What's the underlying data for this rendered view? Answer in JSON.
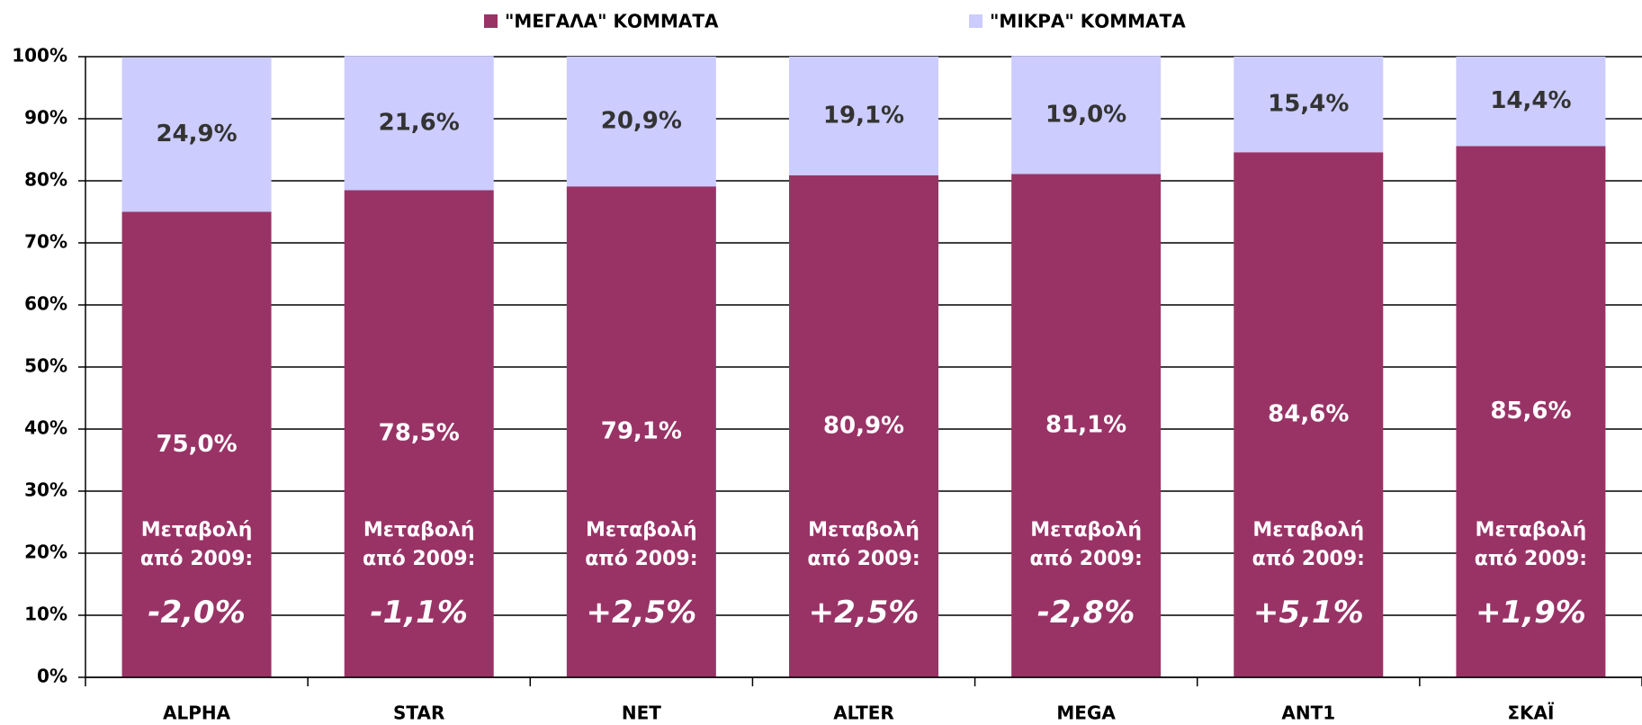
{
  "chart_data": {
    "type": "stacked_bar",
    "categories": [
      "ALPHA",
      "STAR",
      "NET",
      "ALTER",
      "MEGA",
      "ANT1",
      "ΣΚΑΪ"
    ],
    "series": [
      {
        "name": "\"ΜΕΓΑΛΑ\" ΚΟΜΜΑΤΑ",
        "color": "#993366",
        "values": [
          75.0,
          78.5,
          79.1,
          80.9,
          81.1,
          84.6,
          85.6
        ],
        "value_labels": [
          "75,0%",
          "78,5%",
          "79,1%",
          "80,9%",
          "81,1%",
          "84,6%",
          "85,6%"
        ]
      },
      {
        "name": "\"ΜΙΚΡΑ\" ΚΟΜΜΑΤΑ",
        "color": "#ccccff",
        "values": [
          24.9,
          21.6,
          20.9,
          19.1,
          19.0,
          15.4,
          14.4
        ],
        "value_labels": [
          "24,9%",
          "21,6%",
          "20,9%",
          "19,1%",
          "19,0%",
          "15,4%",
          "14,4%"
        ]
      }
    ],
    "annotation_lines": [
      "Μεταβολή",
      "από 2009:"
    ],
    "changes": [
      -2.0,
      -1.1,
      2.5,
      2.5,
      -2.8,
      5.1,
      1.9
    ],
    "change_labels": [
      "-2,0%",
      "-1,1%",
      "+2,5%",
      "+2,5%",
      "-2,8%",
      "+5,1%",
      "+1,9%"
    ],
    "ylim": [
      0,
      100
    ],
    "yticks": [
      {
        "value": 0,
        "label": "0%"
      },
      {
        "value": 10,
        "label": "10%"
      },
      {
        "value": 20,
        "label": "20%"
      },
      {
        "value": 30,
        "label": "30%"
      },
      {
        "value": 40,
        "label": "40%"
      },
      {
        "value": 50,
        "label": "50%"
      },
      {
        "value": 60,
        "label": "60%"
      },
      {
        "value": 70,
        "label": "70%"
      },
      {
        "value": 80,
        "label": "80%"
      },
      {
        "value": 90,
        "label": "90%"
      },
      {
        "value": 100,
        "label": "100%"
      }
    ],
    "grid": true,
    "legend": "top"
  }
}
